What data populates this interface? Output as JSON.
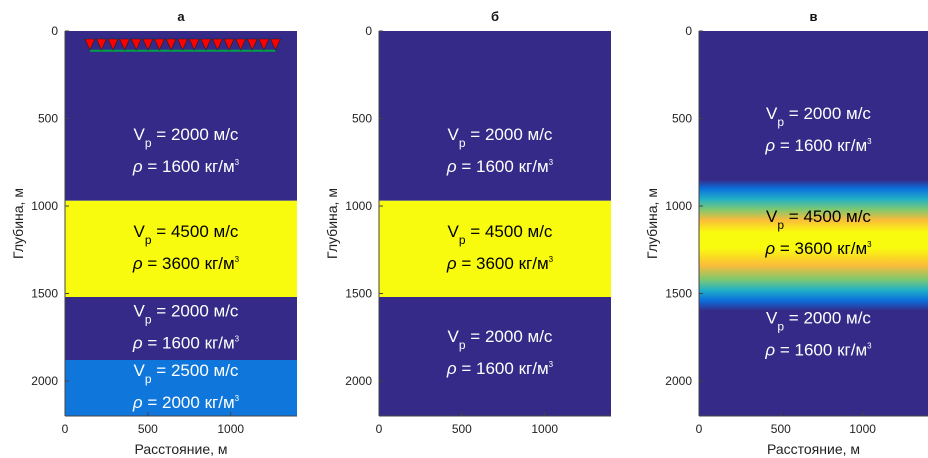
{
  "chart_data": [
    {
      "type": "heatmap",
      "title": "а",
      "xlabel": "Расстояние, м",
      "ylabel": "Глубина, м",
      "xlim": [
        0,
        1400
      ],
      "ylim": [
        2200,
        0
      ],
      "xticks": [
        "0",
        "500",
        "1000"
      ],
      "yticks": [
        "0",
        "500",
        "1000",
        "1500",
        "2000"
      ],
      "layers": [
        {
          "top": 0,
          "bottom": 970,
          "vp": "2000",
          "rho": "1600",
          "color": "#352a87"
        },
        {
          "top": 970,
          "bottom": 1520,
          "vp": "4500",
          "rho": "3600",
          "color": "#f9fb0e"
        },
        {
          "top": 1520,
          "bottom": 1880,
          "vp": "2000",
          "rho": "1600",
          "color": "#352a87"
        },
        {
          "top": 1880,
          "bottom": 2200,
          "vp": "2500",
          "rho": "2000",
          "color": "#0f77db"
        }
      ],
      "receivers": {
        "x_start": 150,
        "x_end": 1270,
        "depth": 80,
        "count": 17,
        "color": "#ff0000"
      },
      "streamer_depth": 130,
      "streamer_color": "#00a04a"
    },
    {
      "type": "heatmap",
      "title": "б",
      "xlabel": "",
      "ylabel": "Глубина, м",
      "xlim": [
        0,
        1400
      ],
      "ylim": [
        2200,
        0
      ],
      "xticks": [
        "0",
        "500",
        "1000"
      ],
      "yticks": [
        "0",
        "500",
        "1000",
        "1500",
        "2000"
      ],
      "layers": [
        {
          "top": 0,
          "bottom": 970,
          "vp": "2000",
          "rho": "1600",
          "color": "#352a87"
        },
        {
          "top": 970,
          "bottom": 1520,
          "vp": "4500",
          "rho": "3600",
          "color": "#f9fb0e"
        },
        {
          "top": 1520,
          "bottom": 2200,
          "vp": "2000",
          "rho": "1600",
          "color": "#352a87"
        }
      ]
    },
    {
      "type": "heatmap",
      "title": "в",
      "xlabel": "Расстояние, м",
      "ylabel": "Глубина, м",
      "xlim": [
        0,
        1400
      ],
      "ylim": [
        2200,
        0
      ],
      "xticks": [
        "0",
        "500",
        "1000"
      ],
      "yticks": [
        "0",
        "500",
        "1000",
        "1500",
        "2000"
      ],
      "gradient_depths": [
        0,
        850,
        900,
        960,
        1020,
        1080,
        1150,
        1240,
        1340,
        1420,
        1480,
        1540,
        1600,
        1660,
        2200
      ],
      "gradient_colors": [
        "#352a87",
        "#352a87",
        "#0b6fdc",
        "#22b0c7",
        "#7ec870",
        "#fbbc3a",
        "#f9fb0e",
        "#f9fb0e",
        "#fbbc3a",
        "#7ec870",
        "#22b0c7",
        "#0b6fdc",
        "#352a87",
        "#352a87",
        "#352a87"
      ],
      "annotations": [
        {
          "vp": "2000",
          "rho": "1600",
          "row_depth": 570
        },
        {
          "vp": "4500",
          "rho": "3600",
          "row_depth": 1160
        },
        {
          "vp": "2000",
          "rho": "1600",
          "row_depth": 1740
        }
      ]
    }
  ],
  "labels": {
    "vp_letter": "V",
    "vp_sub": "p",
    "rho_symbol": "ρ",
    "velocity_unit": "м/с",
    "density_unit": "кг/м",
    "density_unit_sup": "3"
  },
  "colors": {
    "dark_text": "#000000",
    "light_text": "#ffffff",
    "axis": "#444444"
  }
}
